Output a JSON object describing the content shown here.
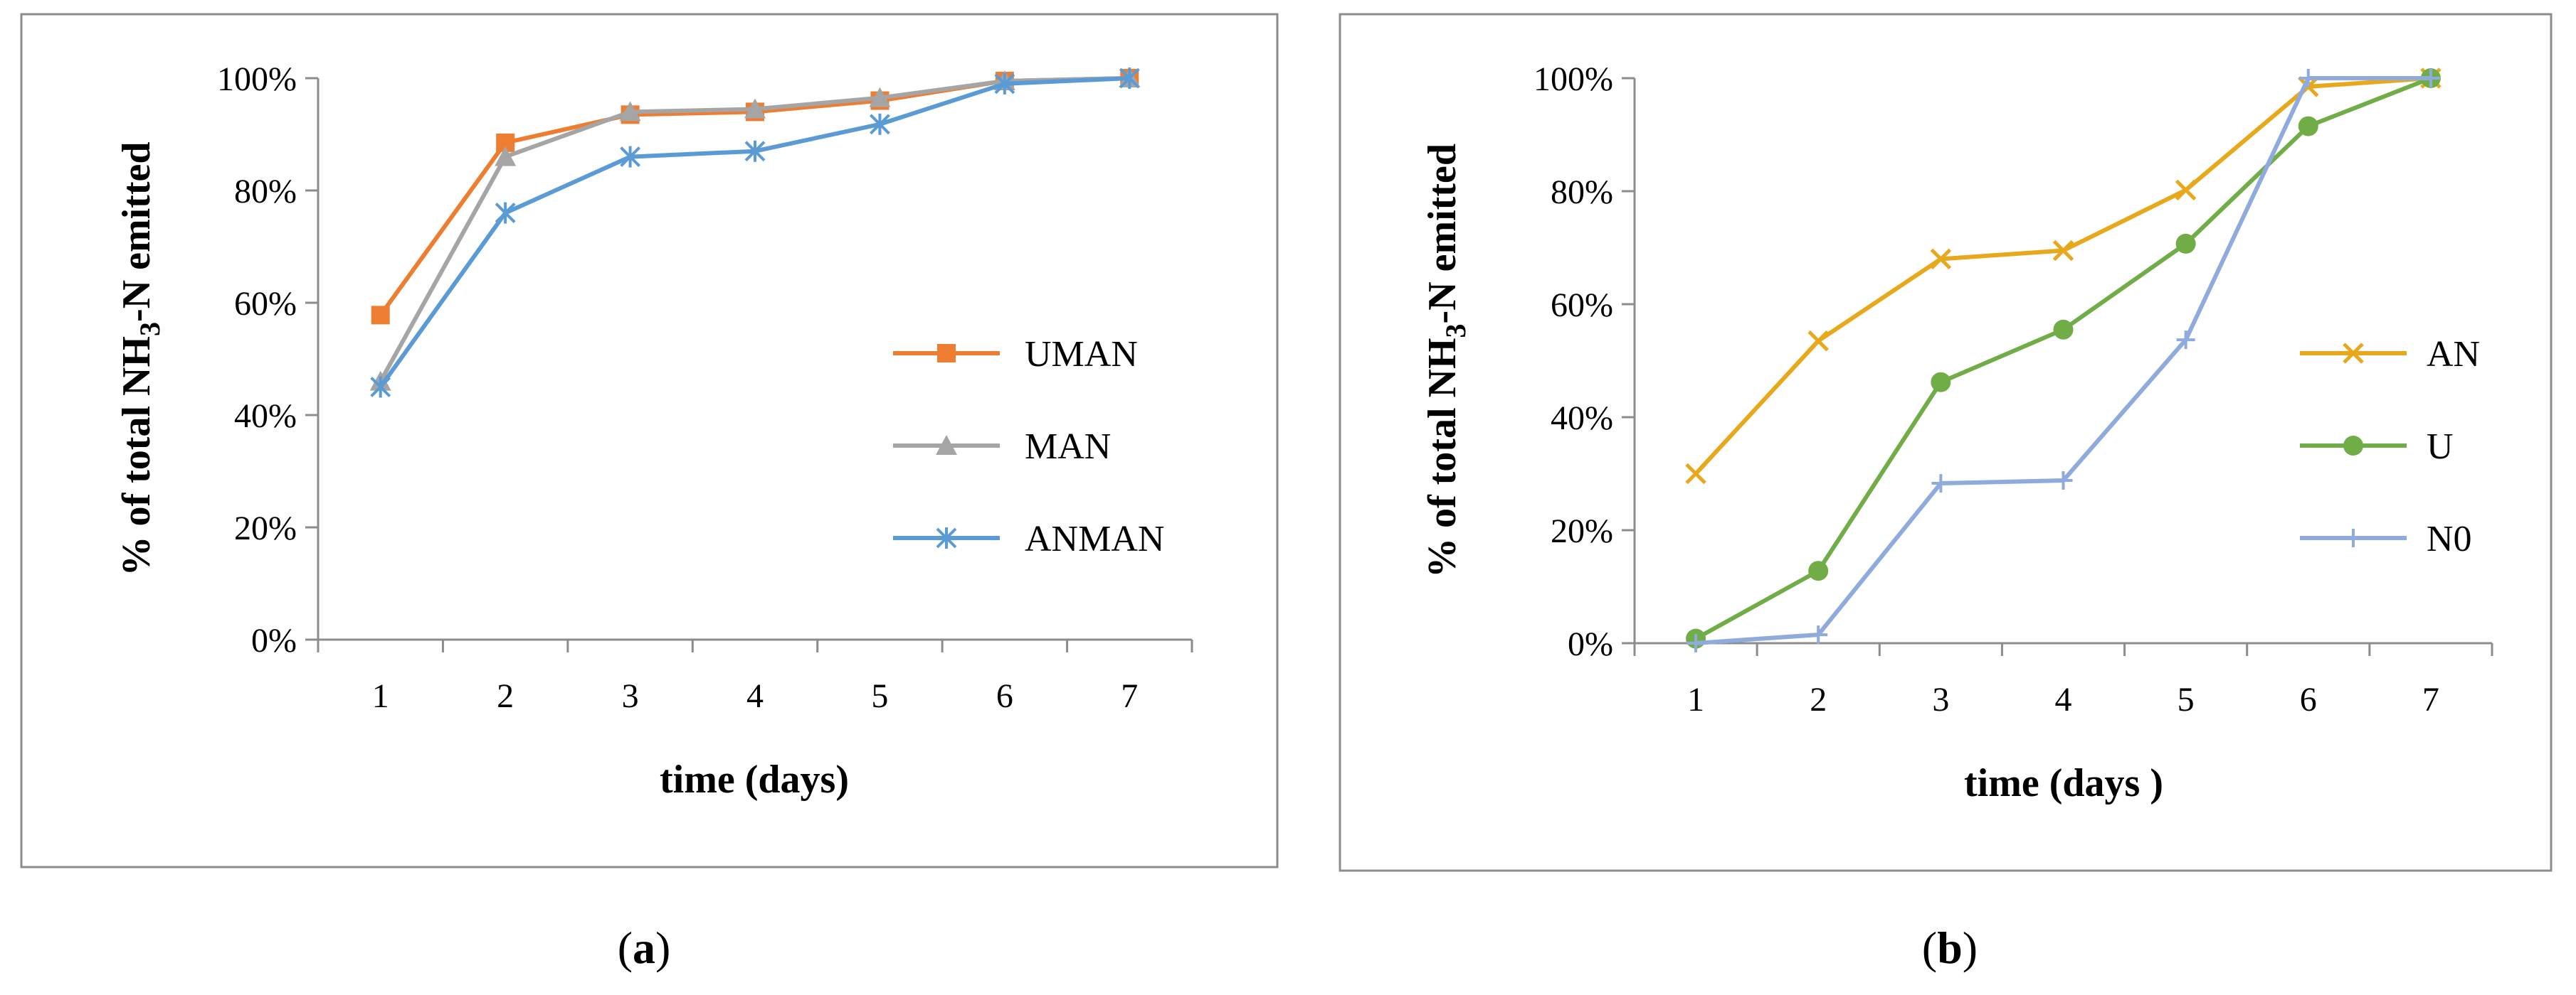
{
  "chart_data": [
    {
      "panel": "a",
      "type": "line",
      "caption_open": "(",
      "caption_letter": "a",
      "caption_close": ")",
      "ylabel_prefix": "% of total NH",
      "ylabel_sub": "3",
      "ylabel_suffix": "-N emitted",
      "xlabel": "time (days)",
      "categories": [
        "1",
        "2",
        "3",
        "4",
        "5",
        "6",
        "7"
      ],
      "yticks": [
        "0%",
        "20%",
        "40%",
        "60%",
        "80%",
        "100%"
      ],
      "ylim": [
        0,
        100
      ],
      "legend_position": "right",
      "series": [
        {
          "name": "UMAN",
          "color": "#ED7D31",
          "marker": "square",
          "values": [
            57.8,
            88.5,
            93.5,
            94.0,
            96.0,
            99.5,
            100
          ]
        },
        {
          "name": "MAN",
          "color": "#A5A5A5",
          "marker": "triangle",
          "values": [
            46.0,
            86.0,
            94.0,
            94.5,
            96.5,
            99.5,
            100
          ]
        },
        {
          "name": "ANMAN",
          "color": "#5B9BD5",
          "marker": "star",
          "values": [
            45.0,
            76.0,
            86.0,
            87.0,
            91.8,
            99.0,
            100
          ]
        }
      ]
    },
    {
      "panel": "b",
      "type": "line",
      "caption_open": "(",
      "caption_letter": "b",
      "caption_close": ")",
      "ylabel_prefix": "% of total NH",
      "ylabel_sub": "3",
      "ylabel_suffix": "-N emitted",
      "xlabel": "time (days )",
      "categories": [
        "1",
        "2",
        "3",
        "4",
        "5",
        "6",
        "7"
      ],
      "yticks": [
        "0%",
        "20%",
        "40%",
        "60%",
        "80%",
        "100%"
      ],
      "ylim": [
        0,
        100
      ],
      "legend_position": "right",
      "series": [
        {
          "name": "AN",
          "color": "#E8A81C",
          "marker": "x",
          "values": [
            30.0,
            53.5,
            68.0,
            69.5,
            80.2,
            98.5,
            100
          ]
        },
        {
          "name": "U",
          "color": "#70AD47",
          "marker": "circle",
          "values": [
            0.8,
            12.8,
            46.2,
            55.5,
            70.7,
            91.5,
            100
          ]
        },
        {
          "name": "N0",
          "color": "#8FAADC",
          "marker": "plus",
          "values": [
            0.0,
            1.5,
            28.3,
            28.8,
            53.7,
            100,
            100
          ]
        }
      ]
    }
  ]
}
